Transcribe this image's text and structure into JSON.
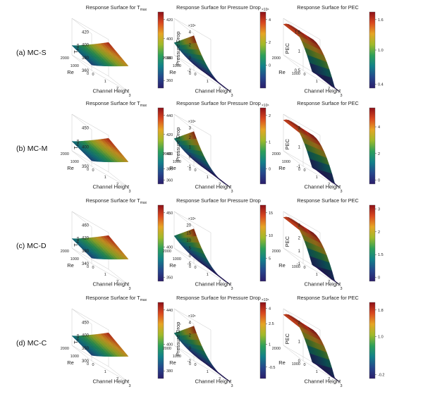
{
  "figure": {
    "rows": [
      {
        "label": "(a) MC-S"
      },
      {
        "label": "(b) MC-M"
      },
      {
        "label": "(c) MC-D"
      },
      {
        "label": "(d) MC-C"
      }
    ],
    "column_titles": {
      "tmax": "Response Surface for T",
      "tmax_sub": "max",
      "dp": "Response Surface for Pressure Drop",
      "pec": "Response Surface for PEC"
    },
    "axis_labels": {
      "re": "Re",
      "channel_height": "Channel Height",
      "tmax": "T",
      "tmax_sub": "max",
      "dp": "Pressure Drop",
      "pec": "PEC"
    },
    "colormap": [
      "#2b1d6b",
      "#25478c",
      "#12808a",
      "#2ca05a",
      "#9fba2a",
      "#e6a525",
      "#d9481f",
      "#8e1018"
    ]
  },
  "chart_data": [
    {
      "row": "(a) MC-S",
      "col": "tmax",
      "type": "surface",
      "title": "Response Surface for Tmax",
      "zlabel": "Tmax",
      "zlim": [
        340,
        430
      ],
      "z_ticks": [
        "360",
        "380",
        "400",
        "420"
      ],
      "cb_ticks": [
        {
          "v": 0.1,
          "t": "360"
        },
        {
          "v": 0.4,
          "t": "380"
        },
        {
          "v": 0.65,
          "t": "400"
        },
        {
          "v": 0.9,
          "t": "420"
        }
      ],
      "re_ticks": [
        "0",
        "1000",
        "2000"
      ],
      "h_ticks": [
        "0",
        "1",
        "2",
        "3"
      ],
      "surface": "tmax"
    },
    {
      "row": "(a) MC-S",
      "col": "dp",
      "type": "surface",
      "title": "Response Surface for Pressure Drop",
      "zlabel": "Pressure Drop",
      "exp": "×10⁶",
      "cb_exp": "×10⁶",
      "z_ticks": [
        "-2",
        "0",
        "2",
        "4"
      ],
      "cb_ticks": [
        {
          "v": 0.9,
          "t": "4"
        },
        {
          "v": 0.6,
          "t": "2"
        },
        {
          "v": 0.3,
          "t": "0"
        }
      ],
      "re_ticks": [
        "0",
        "1000",
        "2000"
      ],
      "h_ticks": [
        "0",
        "1",
        "2",
        "3"
      ],
      "surface": "dp"
    },
    {
      "row": "(a) MC-S",
      "col": "pec",
      "type": "surface",
      "title": "Response Surface for PEC",
      "zlabel": "PEC",
      "zlim": [
        0.4,
        1.6
      ],
      "z_ticks": [
        "0.5",
        "1",
        "1.5"
      ],
      "cb_ticks": [
        {
          "v": 0.9,
          "t": "1.6"
        },
        {
          "v": 0.5,
          "t": "1.0"
        },
        {
          "v": 0.05,
          "t": "0.4"
        }
      ],
      "re_ticks": [
        "1000",
        "2000"
      ],
      "h_ticks": [
        "0",
        "1",
        "2",
        "3"
      ],
      "surface": "pec"
    },
    {
      "row": "(b) MC-M",
      "col": "tmax",
      "type": "surface",
      "title": "Response Surface for Tmax",
      "zlabel": "Tmax",
      "zlim": [
        340,
        450
      ],
      "z_ticks": [
        "350",
        "400",
        "450"
      ],
      "cb_ticks": [
        {
          "v": 0.9,
          "t": "440"
        },
        {
          "v": 0.65,
          "t": "420"
        },
        {
          "v": 0.4,
          "t": "400"
        },
        {
          "v": 0.2,
          "t": "380"
        },
        {
          "v": 0.05,
          "t": "360"
        }
      ],
      "re_ticks": [
        "0",
        "1000",
        "2000"
      ],
      "h_ticks": [
        "0",
        "1",
        "2",
        "3"
      ],
      "surface": "tmax"
    },
    {
      "row": "(b) MC-M",
      "col": "dp",
      "type": "surface",
      "title": "Response Surface for Pressure Drop",
      "zlabel": "Pressure Drop",
      "exp": "×10⁶",
      "cb_exp": "×10⁶",
      "z_ticks": [
        "-1",
        "0",
        "1",
        "2",
        "3"
      ],
      "cb_ticks": [
        {
          "v": 0.9,
          "t": "2"
        },
        {
          "v": 0.55,
          "t": "1"
        },
        {
          "v": 0.2,
          "t": "0"
        }
      ],
      "re_ticks": [
        "0",
        "1000",
        "2000"
      ],
      "h_ticks": [
        "0",
        "1",
        "2",
        "3"
      ],
      "surface": "dp"
    },
    {
      "row": "(b) MC-M",
      "col": "pec",
      "type": "surface",
      "title": "Response Surface for PEC",
      "zlabel": "PEC",
      "z_ticks": [
        "-1",
        "1",
        "3"
      ],
      "cb_ticks": [
        {
          "v": 0.75,
          "t": "4"
        },
        {
          "v": 0.4,
          "t": "2"
        },
        {
          "v": 0.05,
          "t": "0"
        }
      ],
      "re_ticks": [
        "0",
        "1000",
        "2000"
      ],
      "h_ticks": [
        "0",
        "1",
        "2",
        "3"
      ],
      "surface": "pec"
    },
    {
      "row": "(c) MC-D",
      "col": "tmax",
      "type": "surface",
      "title": "Response Surface for Tmax",
      "zlabel": "Tmax",
      "zlim": [
        340,
        460
      ],
      "z_ticks": [
        "340",
        "380",
        "420",
        "460"
      ],
      "cb_ticks": [
        {
          "v": 0.9,
          "t": "450"
        },
        {
          "v": 0.45,
          "t": "400"
        },
        {
          "v": 0.05,
          "t": "350"
        }
      ],
      "re_ticks": [
        "0",
        "1000",
        "2000"
      ],
      "h_ticks": [
        "0",
        "1",
        "2",
        "3"
      ],
      "surface": "tmax"
    },
    {
      "row": "(c) MC-D",
      "col": "dp",
      "type": "surface",
      "title": "Response Surface for Pressure Drop",
      "zlabel": "",
      "exp": "×10⁵",
      "z_ticks": [
        "-5",
        "0",
        "5",
        "10",
        "15",
        "20"
      ],
      "cb_ticks": [
        {
          "v": 0.9,
          "t": "15"
        },
        {
          "v": 0.6,
          "t": "10"
        },
        {
          "v": 0.3,
          "t": "5"
        }
      ],
      "re_ticks": [
        "0",
        "1000",
        "2000"
      ],
      "h_ticks": [
        "0",
        "1",
        "2",
        "3"
      ],
      "surface": "dp"
    },
    {
      "row": "(c) MC-D",
      "col": "pec",
      "type": "surface",
      "title": "Response Surface for PEC",
      "zlabel": "PEC",
      "z_ticks": [
        "-1",
        "1",
        "2",
        "3"
      ],
      "cb_ticks": [
        {
          "v": 0.95,
          "t": "3"
        },
        {
          "v": 0.65,
          "t": "2"
        },
        {
          "v": 0.35,
          "t": "1.5"
        },
        {
          "v": 0.05,
          "t": "0"
        }
      ],
      "re_ticks": [
        "1000",
        "2000"
      ],
      "h_ticks": [
        "0",
        "1",
        "2",
        "3"
      ],
      "surface": "pec"
    },
    {
      "row": "(d) MC-C",
      "col": "tmax",
      "type": "surface",
      "title": "Response Surface for Tmax",
      "zlabel": "Tmax",
      "zlim": [
        300,
        450
      ],
      "z_ticks": [
        "300",
        "350",
        "400",
        "450"
      ],
      "cb_ticks": [
        {
          "v": 0.9,
          "t": "440"
        },
        {
          "v": 0.45,
          "t": "400"
        },
        {
          "v": 0.1,
          "t": "380"
        }
      ],
      "re_ticks": [
        "0",
        "1000",
        "2000"
      ],
      "h_ticks": [
        "0",
        "1",
        "2",
        "3"
      ],
      "surface": "tmax"
    },
    {
      "row": "(d) MC-C",
      "col": "dp",
      "type": "surface",
      "title": "Response Surface for Pressure Drop",
      "zlabel": "Pressure Drop",
      "exp": "×10⁶",
      "cb_exp": "×10⁶",
      "z_ticks": [
        "-2",
        "0",
        "2",
        "4"
      ],
      "cb_ticks": [
        {
          "v": 0.92,
          "t": "4"
        },
        {
          "v": 0.72,
          "t": "2.5"
        },
        {
          "v": 0.45,
          "t": "1"
        },
        {
          "v": 0.15,
          "t": "-0.5"
        }
      ],
      "re_ticks": [
        "0",
        "1000",
        "2000"
      ],
      "h_ticks": [
        "0",
        "1",
        "2",
        "3"
      ],
      "surface": "dp"
    },
    {
      "row": "(d) MC-C",
      "col": "pec",
      "type": "surface",
      "title": "Response Surface for PEC",
      "zlabel": "PEC",
      "z_ticks": [
        "0",
        "1",
        "2"
      ],
      "cb_ticks": [
        {
          "v": 0.9,
          "t": "1.8"
        },
        {
          "v": 0.55,
          "t": "1.0"
        },
        {
          "v": 0.05,
          "t": "-0.2"
        }
      ],
      "re_ticks": [
        "1000",
        "2000"
      ],
      "h_ticks": [
        "0",
        "1",
        "2",
        "3"
      ],
      "surface": "pec"
    }
  ]
}
